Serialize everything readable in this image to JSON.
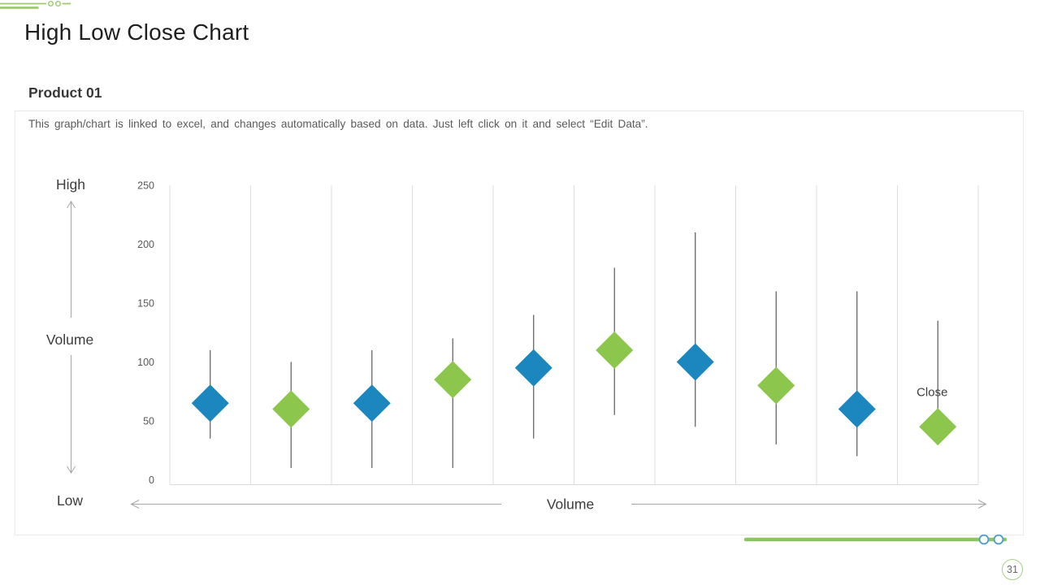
{
  "slide": {
    "title": "High Low Close Chart",
    "subtitle": "Product 01",
    "description": "This graph/chart is linked to excel, and changes automatically based on data. Just left click on it and select “Edit Data”.",
    "page_number": "31"
  },
  "colors": {
    "marker_blue": "#1b87be",
    "marker_green": "#8cc64c",
    "hl_line": "#5a5a5a",
    "gridline": "#dedede",
    "axis_line": "#d9d9d9",
    "tick_text": "#595959",
    "annotation_text": "#3d3d3d",
    "arrow_gray": "#a6a6a6",
    "decor_green_light": "#9ccb6e",
    "decor_green": "#8cc561",
    "ring_blue": "#4e9fca"
  },
  "chart_data": {
    "type": "hlc-stock",
    "title": "",
    "xlabel": "Volume",
    "ylabel": "Volume",
    "ylim": [
      0,
      250
    ],
    "yticks": [
      0,
      50,
      100,
      150,
      200,
      250
    ],
    "grid": "vertical-only",
    "marker": "diamond",
    "legend": "none",
    "annotations": {
      "high": "High",
      "low": "Low",
      "volume_left": "Volume",
      "volume_bottom": "Volume",
      "close": "Close"
    },
    "points": [
      {
        "high": 110,
        "low": 35,
        "close": 65,
        "color": "blue"
      },
      {
        "high": 100,
        "low": 10,
        "close": 60,
        "color": "green"
      },
      {
        "high": 110,
        "low": 10,
        "close": 65,
        "color": "blue"
      },
      {
        "high": 120,
        "low": 10,
        "close": 85,
        "color": "green"
      },
      {
        "high": 140,
        "low": 35,
        "close": 95,
        "color": "blue"
      },
      {
        "high": 180,
        "low": 55,
        "close": 110,
        "color": "green"
      },
      {
        "high": 210,
        "low": 45,
        "close": 100,
        "color": "blue"
      },
      {
        "high": 160,
        "low": 30,
        "close": 80,
        "color": "green"
      },
      {
        "high": 160,
        "low": 20,
        "close": 60,
        "color": "blue"
      },
      {
        "high": 135,
        "low": 45,
        "close": 45,
        "color": "green"
      }
    ]
  }
}
